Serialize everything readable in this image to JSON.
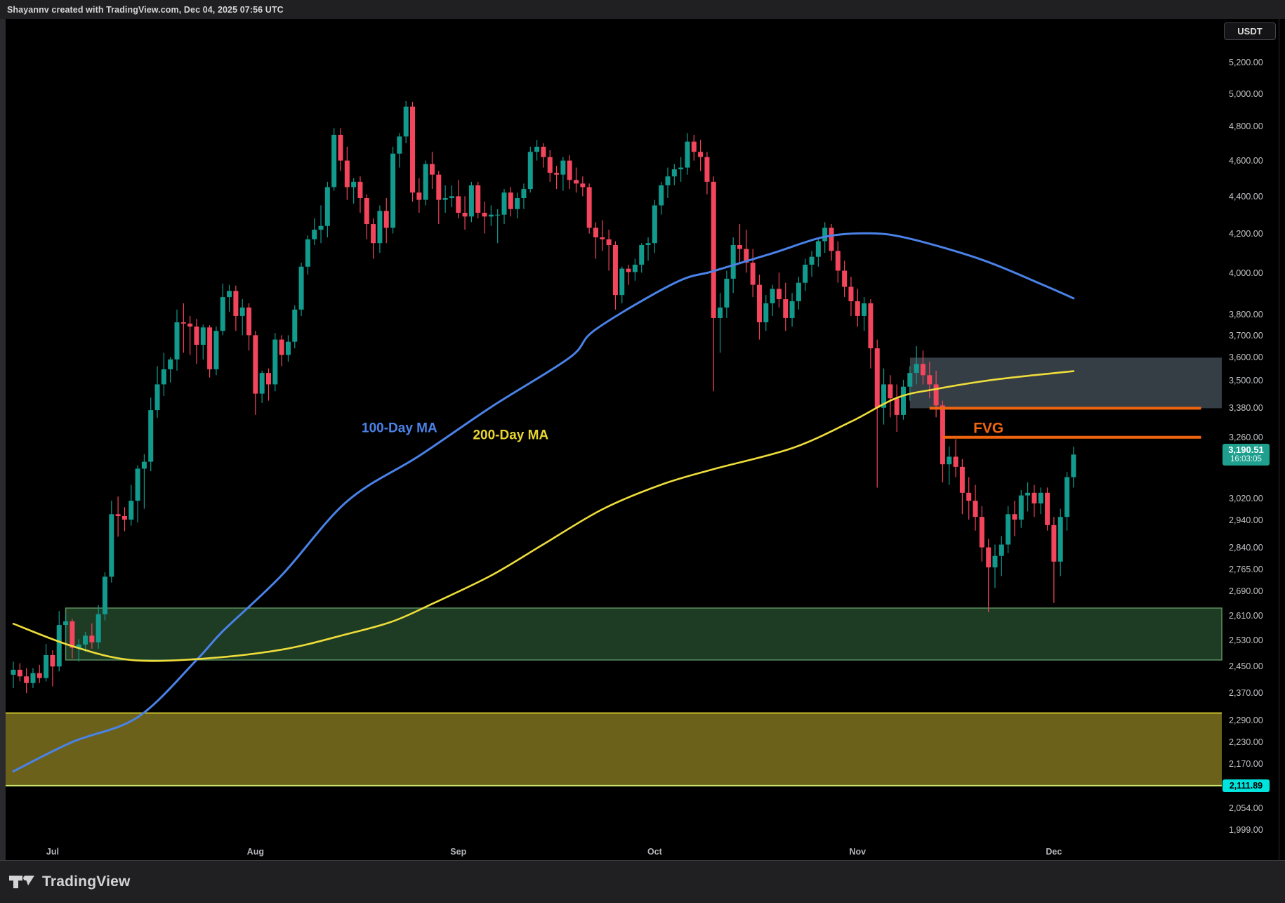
{
  "header": {
    "attribution": "Shayannv created with TradingView.com, Dec 04, 2025 07:56 UTC"
  },
  "axis_button": {
    "label": "USDT"
  },
  "footer": {
    "brand": "TradingView"
  },
  "price_axis": {
    "ticks": [
      5200,
      5000,
      4800,
      4600,
      4400,
      4200,
      4000,
      3800,
      3700,
      3600,
      3500,
      3380,
      3260,
      3020,
      2940,
      2840,
      2765,
      2690,
      2610,
      2530,
      2450,
      2370,
      2290,
      2230,
      2170,
      2054,
      1999
    ],
    "last_price_tag": {
      "price": "3,190.51",
      "countdown": "16:03:05",
      "bg": "#1fa08f"
    },
    "alert_tag": {
      "price": "2,111.89",
      "bg": "#00e3dc"
    }
  },
  "time_axis": {
    "months": [
      {
        "label": "Jul",
        "day": 6
      },
      {
        "label": "Aug",
        "day": 37
      },
      {
        "label": "Sep",
        "day": 68
      },
      {
        "label": "Oct",
        "day": 98
      },
      {
        "label": "Nov",
        "day": 129
      },
      {
        "label": "Dec",
        "day": 159
      }
    ]
  },
  "chart_data": {
    "type": "candlestick",
    "title": "ETH / USDT daily, Jun 25 - Dec 04 2025, log scale",
    "quote_currency": "USDT",
    "scale": "log",
    "x_unit": "day",
    "first_candle_date": "Jun 25",
    "last_candle_date": "Dec 04",
    "ylim": [
      1999,
      5339
    ],
    "grid": false,
    "candle_colors": {
      "up": "#129a8d",
      "down": "#f3455c"
    },
    "candles": [
      [
        2425,
        2465,
        2385,
        2440
      ],
      [
        2440,
        2460,
        2405,
        2420
      ],
      [
        2420,
        2445,
        2370,
        2400
      ],
      [
        2400,
        2445,
        2385,
        2430
      ],
      [
        2430,
        2455,
        2400,
        2415
      ],
      [
        2415,
        2520,
        2405,
        2485
      ],
      [
        2485,
        2500,
        2390,
        2450
      ],
      [
        2450,
        2625,
        2435,
        2580
      ],
      [
        2580,
        2615,
        2530,
        2592
      ],
      [
        2592,
        2600,
        2475,
        2508
      ],
      [
        2508,
        2535,
        2465,
        2518
      ],
      [
        2518,
        2558,
        2495,
        2546
      ],
      [
        2546,
        2585,
        2505,
        2525
      ],
      [
        2525,
        2645,
        2505,
        2615
      ],
      [
        2615,
        2755,
        2595,
        2740
      ],
      [
        2740,
        3012,
        2720,
        2962
      ],
      [
        2962,
        3028,
        2880,
        2955
      ],
      [
        2955,
        2988,
        2900,
        2942
      ],
      [
        2942,
        3072,
        2920,
        3012
      ],
      [
        3012,
        3148,
        2932,
        3135
      ],
      [
        3135,
        3192,
        2982,
        3162
      ],
      [
        3162,
        3425,
        3125,
        3372
      ],
      [
        3372,
        3562,
        3340,
        3482
      ],
      [
        3482,
        3622,
        3432,
        3548
      ],
      [
        3548,
        3602,
        3490,
        3592
      ],
      [
        3592,
        3822,
        3542,
        3762
      ],
      [
        3762,
        3852,
        3622,
        3756
      ],
      [
        3756,
        3792,
        3612,
        3742
      ],
      [
        3742,
        3778,
        3572,
        3658
      ],
      [
        3658,
        3752,
        3592,
        3738
      ],
      [
        3738,
        3748,
        3512,
        3548
      ],
      [
        3548,
        3742,
        3522,
        3722
      ],
      [
        3722,
        3948,
        3702,
        3882
      ],
      [
        3882,
        3942,
        3812,
        3912
      ],
      [
        3912,
        3938,
        3722,
        3792
      ],
      [
        3792,
        3872,
        3702,
        3832
      ],
      [
        3832,
        3852,
        3632,
        3702
      ],
      [
        3702,
        3722,
        3352,
        3442
      ],
      [
        3442,
        3542,
        3402,
        3532
      ],
      [
        3532,
        3552,
        3412,
        3482
      ],
      [
        3482,
        3712,
        3452,
        3682
      ],
      [
        3682,
        3702,
        3562,
        3612
      ],
      [
        3612,
        3702,
        3582,
        3672
      ],
      [
        3672,
        3842,
        3642,
        3822
      ],
      [
        3822,
        4052,
        3792,
        4032
      ],
      [
        4032,
        4192,
        3992,
        4172
      ],
      [
        4172,
        4282,
        4142,
        4222
      ],
      [
        4222,
        4352,
        4152,
        4242
      ],
      [
        4242,
        4482,
        4182,
        4452
      ],
      [
        4452,
        4792,
        4432,
        4752
      ],
      [
        4752,
        4792,
        4542,
        4602
      ],
      [
        4602,
        4682,
        4382,
        4452
      ],
      [
        4452,
        4502,
        4362,
        4482
      ],
      [
        4482,
        4512,
        4312,
        4392
      ],
      [
        4392,
        4412,
        4172,
        4252
      ],
      [
        4252,
        4282,
        4072,
        4152
      ],
      [
        4152,
        4352,
        4102,
        4322
      ],
      [
        4322,
        4392,
        4152,
        4232
      ],
      [
        4232,
        4682,
        4202,
        4642
      ],
      [
        4642,
        4762,
        4562,
        4742
      ],
      [
        4742,
        4956,
        4702,
        4922
      ],
      [
        4922,
        4952,
        4372,
        4422
      ],
      [
        4422,
        4502,
        4312,
        4382
      ],
      [
        4382,
        4602,
        4352,
        4582
      ],
      [
        4582,
        4652,
        4442,
        4522
      ],
      [
        4522,
        4542,
        4252,
        4382
      ],
      [
        4382,
        4462,
        4312,
        4392
      ],
      [
        4392,
        4462,
        4342,
        4402
      ],
      [
        4402,
        4492,
        4282,
        4312
      ],
      [
        4312,
        4402,
        4222,
        4292
      ],
      [
        4292,
        4482,
        4262,
        4462
      ],
      [
        4462,
        4482,
        4282,
        4312
      ],
      [
        4312,
        4372,
        4202,
        4292
      ],
      [
        4292,
        4352,
        4242,
        4302
      ],
      [
        4302,
        4332,
        4152,
        4302
      ],
      [
        4302,
        4442,
        4252,
        4422
      ],
      [
        4422,
        4452,
        4292,
        4332
      ],
      [
        4332,
        4422,
        4282,
        4392
      ],
      [
        4392,
        4472,
        4332,
        4442
      ],
      [
        4442,
        4682,
        4422,
        4652
      ],
      [
        4652,
        4722,
        4602,
        4682
      ],
      [
        4682,
        4702,
        4562,
        4622
      ],
      [
        4622,
        4662,
        4482,
        4532
      ],
      [
        4532,
        4572,
        4442,
        4522
      ],
      [
        4522,
        4622,
        4432,
        4602
      ],
      [
        4602,
        4632,
        4442,
        4492
      ],
      [
        4492,
        4562,
        4422,
        4472
      ],
      [
        4472,
        4512,
        4402,
        4452
      ],
      [
        4452,
        4472,
        4202,
        4232
      ],
      [
        4232,
        4262,
        4072,
        4182
      ],
      [
        4182,
        4272,
        4112,
        4172
      ],
      [
        4172,
        4222,
        4012,
        4142
      ],
      [
        4142,
        4162,
        3822,
        3892
      ],
      [
        3892,
        4032,
        3852,
        4022
      ],
      [
        4022,
        4042,
        3942,
        4005
      ],
      [
        4005,
        4072,
        3962,
        4042
      ],
      [
        4042,
        4152,
        4002,
        4142
      ],
      [
        4142,
        4182,
        4062,
        4152
      ],
      [
        4152,
        4382,
        4102,
        4352
      ],
      [
        4352,
        4482,
        4302,
        4462
      ],
      [
        4462,
        4562,
        4392,
        4512
      ],
      [
        4512,
        4582,
        4462,
        4552
      ],
      [
        4552,
        4622,
        4482,
        4562
      ],
      [
        4562,
        4762,
        4522,
        4712
      ],
      [
        4712,
        4752,
        4602,
        4652
      ],
      [
        4652,
        4722,
        4542,
        4622
      ],
      [
        4622,
        4652,
        4412,
        4482
      ],
      [
        4482,
        4512,
        3452,
        3782
      ],
      [
        3782,
        3902,
        3622,
        3832
      ],
      [
        3832,
        4012,
        3782,
        3972
      ],
      [
        3972,
        4182,
        3902,
        4142
      ],
      [
        4142,
        4252,
        4052,
        4122
      ],
      [
        4122,
        4222,
        4002,
        4052
      ],
      [
        4052,
        4122,
        3882,
        3942
      ],
      [
        3942,
        3992,
        3682,
        3762
      ],
      [
        3762,
        3892,
        3722,
        3852
      ],
      [
        3852,
        3942,
        3792,
        3922
      ],
      [
        3922,
        4002,
        3832,
        3872
      ],
      [
        3872,
        3952,
        3722,
        3782
      ],
      [
        3782,
        3902,
        3742,
        3862
      ],
      [
        3862,
        3982,
        3822,
        3952
      ],
      [
        3952,
        4072,
        3912,
        4042
      ],
      [
        4042,
        4112,
        3982,
        4082
      ],
      [
        4082,
        4182,
        4032,
        4162
      ],
      [
        4162,
        4262,
        4102,
        4232
      ],
      [
        4232,
        4252,
        4062,
        4112
      ],
      [
        4112,
        4162,
        3952,
        4012
      ],
      [
        4012,
        4062,
        3882,
        3932
      ],
      [
        3932,
        3982,
        3792,
        3862
      ],
      [
        3862,
        3922,
        3742,
        3792
      ],
      [
        3792,
        3882,
        3722,
        3852
      ],
      [
        3852,
        3872,
        3552,
        3642
      ],
      [
        3642,
        3682,
        3062,
        3382
      ],
      [
        3382,
        3552,
        3312,
        3482
      ],
      [
        3482,
        3522,
        3342,
        3422
      ],
      [
        3422,
        3482,
        3282,
        3352
      ],
      [
        3352,
        3502,
        3332,
        3472
      ],
      [
        3472,
        3562,
        3412,
        3532
      ],
      [
        3532,
        3652,
        3482,
        3572
      ],
      [
        3572,
        3632,
        3482,
        3522
      ],
      [
        3522,
        3582,
        3422,
        3482
      ],
      [
        3482,
        3542,
        3342,
        3392
      ],
      [
        3392,
        3412,
        3082,
        3152
      ],
      [
        3152,
        3222,
        3072,
        3182
      ],
      [
        3182,
        3252,
        3102,
        3142
      ],
      [
        3142,
        3172,
        2962,
        3042
      ],
      [
        3042,
        3102,
        2942,
        3012
      ],
      [
        3012,
        3072,
        2902,
        2952
      ],
      [
        2952,
        2992,
        2792,
        2842
      ],
      [
        2842,
        2872,
        2622,
        2772
      ],
      [
        2772,
        2852,
        2702,
        2812
      ],
      [
        2812,
        2882,
        2742,
        2852
      ],
      [
        2852,
        2992,
        2822,
        2962
      ],
      [
        2962,
        3012,
        2882,
        2942
      ],
      [
        2942,
        3052,
        2912,
        3032
      ],
      [
        3032,
        3082,
        2972,
        3042
      ],
      [
        3042,
        3072,
        2952,
        3002
      ],
      [
        3002,
        3062,
        2962,
        3042
      ],
      [
        3042,
        3062,
        2902,
        2922
      ],
      [
        2922,
        2952,
        2652,
        2792
      ],
      [
        2792,
        2982,
        2742,
        2952
      ],
      [
        2952,
        3122,
        2902,
        3102
      ],
      [
        3102,
        3222,
        3062,
        3190.51
      ]
    ],
    "overlays": {
      "ma100": {
        "name": "100-Day MA",
        "color": "#4a82e8",
        "width": 3,
        "points": [
          [
            0,
            2150
          ],
          [
            9,
            2230
          ],
          [
            19,
            2300
          ],
          [
            28,
            2470
          ],
          [
            32,
            2560
          ],
          [
            41,
            2745
          ],
          [
            51,
            3010
          ],
          [
            62,
            3185
          ],
          [
            73,
            3385
          ],
          [
            85,
            3600
          ],
          [
            89,
            3729
          ],
          [
            101,
            3950
          ],
          [
            107,
            4010
          ],
          [
            116,
            4100
          ],
          [
            124,
            4185
          ],
          [
            131,
            4203
          ],
          [
            137,
            4175
          ],
          [
            148,
            4067
          ],
          [
            157,
            3946
          ],
          [
            162,
            3876
          ]
        ]
      },
      "ma200": {
        "name": "200-Day MA",
        "color": "#eedd3a",
        "width": 2.6,
        "points": [
          [
            0,
            2584
          ],
          [
            9,
            2513
          ],
          [
            18,
            2470
          ],
          [
            29,
            2474
          ],
          [
            41,
            2502
          ],
          [
            51,
            2551
          ],
          [
            58,
            2592
          ],
          [
            64,
            2649
          ],
          [
            73,
            2744
          ],
          [
            81,
            2853
          ],
          [
            90,
            2980
          ],
          [
            99,
            3073
          ],
          [
            107,
            3133
          ],
          [
            119,
            3216
          ],
          [
            128,
            3324
          ],
          [
            135,
            3424
          ],
          [
            141,
            3462
          ],
          [
            150,
            3503
          ],
          [
            162,
            3540
          ]
        ]
      }
    },
    "zones": [
      {
        "name": "fvg-supply-zone",
        "day_start": 137,
        "day_end": 186,
        "price_top": 3600,
        "price_bottom": 3380,
        "fill": "rgba(148,168,190,0.36)"
      },
      {
        "name": "green-support-zone",
        "day_start": 8,
        "day_end": 186,
        "price_top": 2635,
        "price_bottom": 2470,
        "fill": "#1e3b24",
        "border": "#5c8f5f"
      },
      {
        "name": "olive-support-zone",
        "day_start": -2,
        "day_end": 186,
        "price_top": 2312,
        "price_bottom": 2112,
        "fill": "#6b611a",
        "border_top": "#c9bc2e"
      }
    ],
    "lines": [
      {
        "name": "fvg-upper-line",
        "price": 3380,
        "day_start": 140,
        "day_end": 181.5,
        "color": "#ef650f",
        "width": 4
      },
      {
        "name": "fvg-lower-line",
        "price": 3260,
        "day_start": 142,
        "day_end": 181.5,
        "color": "#ef650f",
        "width": 4
      },
      {
        "name": "alert-level-line",
        "price": 2111.89,
        "day_start": -2,
        "day_end": 186,
        "color": "#cce870",
        "width": 2
      }
    ],
    "annotations": [
      {
        "text": "FVG",
        "day": 149,
        "price": 3300,
        "color": "#ef650f",
        "size": 21
      },
      {
        "text": "100-Day MA",
        "day": 59,
        "price": 3300,
        "color": "#4a82e8",
        "size": 19
      },
      {
        "text": "200-Day MA",
        "day": 76,
        "price": 3272,
        "color": "#e8d532",
        "size": 19
      }
    ],
    "last_price": 3190.51,
    "alert_price": 2111.89
  }
}
